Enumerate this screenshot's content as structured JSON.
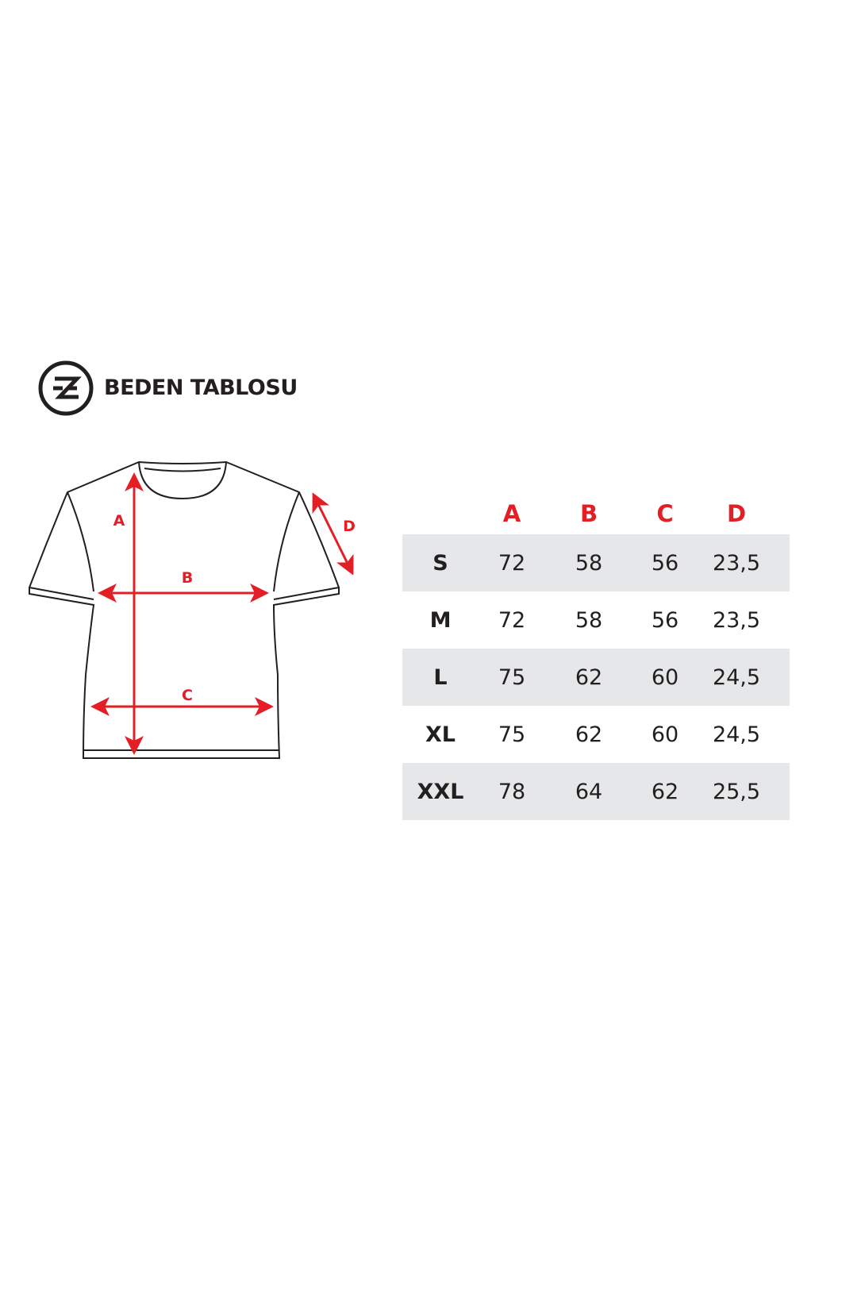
{
  "header": {
    "title": "BEDEN TABLOSU",
    "logo_letters": "ZE"
  },
  "diagram": {
    "labels": [
      "A",
      "B",
      "C",
      "D"
    ],
    "accent_color": "#e31e24"
  },
  "table": {
    "columns": [
      "A",
      "B",
      "C",
      "D"
    ],
    "rows": [
      {
        "size": "S",
        "values": [
          "72",
          "58",
          "56",
          "23,5"
        ]
      },
      {
        "size": "M",
        "values": [
          "72",
          "58",
          "56",
          "23,5"
        ]
      },
      {
        "size": "L",
        "values": [
          "75",
          "62",
          "60",
          "24,5"
        ]
      },
      {
        "size": "XL",
        "values": [
          "75",
          "62",
          "60",
          "24,5"
        ]
      },
      {
        "size": "XXL",
        "values": [
          "78",
          "64",
          "62",
          "25,5"
        ]
      }
    ],
    "shade_color": "#e6e7e8"
  }
}
